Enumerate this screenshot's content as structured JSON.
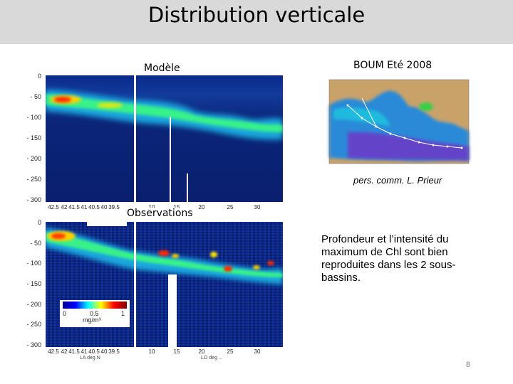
{
  "slide": {
    "title": "Distribution verticale",
    "page_number": "8"
  },
  "model_panel": {
    "label": "Modèle",
    "y_ticks": [
      "0",
      "- 50",
      "- 100",
      "- 150",
      "- 200",
      "- 250",
      "- 300"
    ],
    "x_ticks": [
      "42.5",
      "42",
      "41.5",
      "41",
      "40.5",
      "40",
      "39.5",
      "10",
      "15",
      "20",
      "25",
      "30"
    ]
  },
  "obs_panel": {
    "label": "Observations",
    "y_ticks": [
      "0",
      "- 50",
      "- 100",
      "- 150",
      "- 200",
      "- 250",
      "- 300"
    ],
    "x_ticks": [
      "42.5",
      "42",
      "41.5",
      "41",
      "40.5",
      "40",
      "39.5",
      "10",
      "15",
      "20",
      "25",
      "30"
    ],
    "x_label_left": "LA   deg N",
    "x_label_right": "LO   deg ..."
  },
  "colorbar": {
    "min": "0",
    "mid": "0.5",
    "max": "1",
    "unit": "mg/m³"
  },
  "map_panel": {
    "label": "BOUM Eté 2008",
    "credit": "pers. comm. L. Prieur"
  },
  "note": "Profondeur et l’intensité du maximum de Chl sont bien reproduites dans les 2 sous-bassins.",
  "colors": {
    "title_bar": "#d9d9d9",
    "deep_blue": "#0a1f6e",
    "dcm_red": "#ff2a00",
    "dcm_green": "#3cff7a"
  }
}
